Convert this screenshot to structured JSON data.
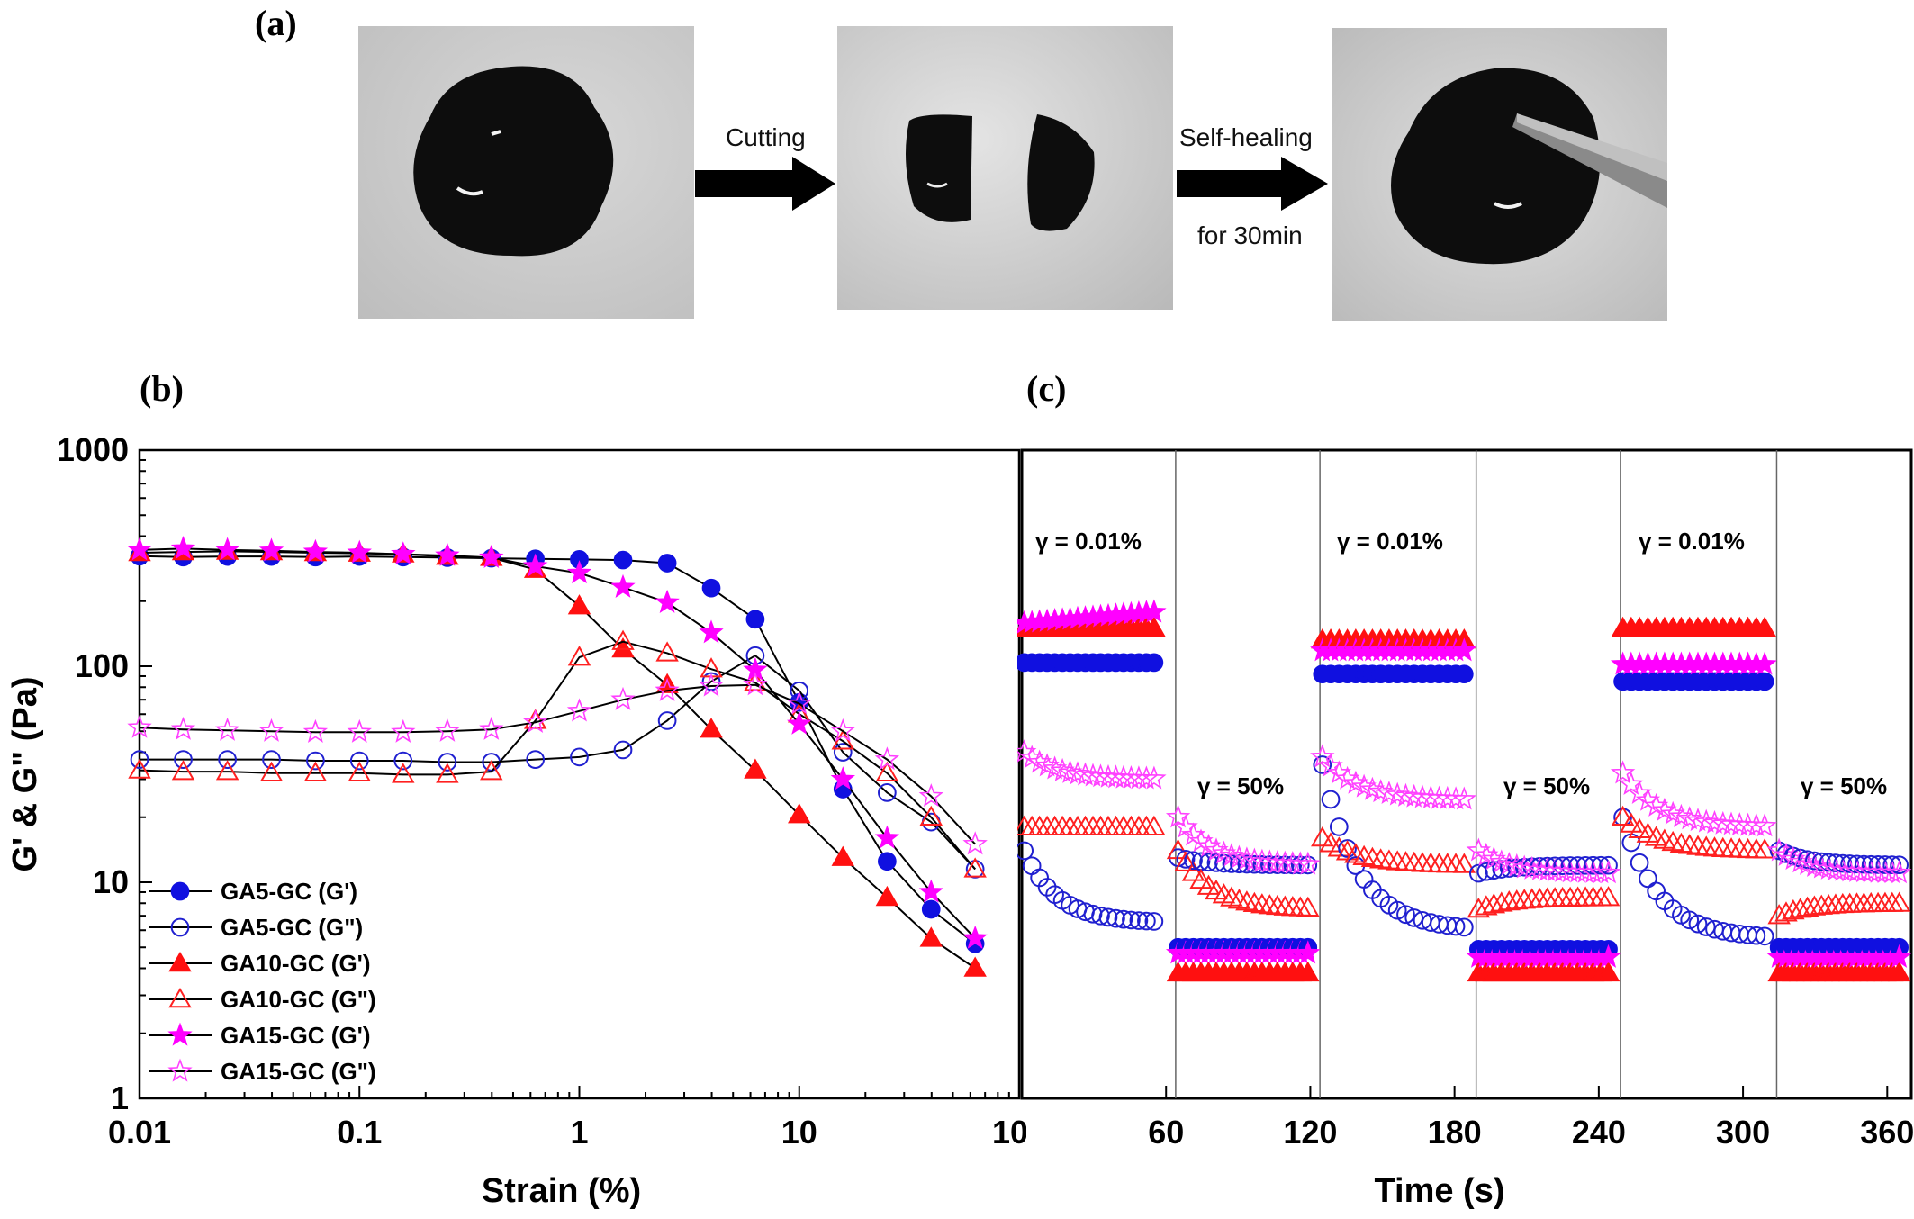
{
  "panel_labels": {
    "a": "(a)",
    "b": "(b)",
    "c": "(c)"
  },
  "photos": {
    "step1_label": "Cutting",
    "step2_label": "Self-healing",
    "step2_sublabel": "for 30min"
  },
  "colors": {
    "blue": "#1010e0",
    "red": "#ff1010",
    "magenta": "#ff00ff",
    "open_blue": "#2020d0",
    "open_red": "#ff2020",
    "open_magenta": "#ff40ff"
  },
  "chart_data": [
    {
      "type": "scatter",
      "panel": "b",
      "xlabel": "Strain (%)",
      "ylabel": "G' & G\" (Pa)",
      "xscale": "log",
      "yscale": "log",
      "xlim": [
        0.01,
        100
      ],
      "ylim": [
        1,
        1000
      ],
      "xticks": [
        "0.01",
        "0.1",
        "1",
        "10",
        "100"
      ],
      "yticks": [
        "1",
        "10",
        "100",
        "1000"
      ],
      "legend_position": "bottom-left",
      "series": [
        {
          "name": "GA5-GC (G')",
          "marker": "circle",
          "filled": true,
          "color": "#1010e0",
          "x": [
            0.01,
            0.0158,
            0.0251,
            0.0398,
            0.0631,
            0.1,
            0.158,
            0.251,
            0.398,
            0.631,
            1,
            1.58,
            2.51,
            3.98,
            6.31,
            10,
            15.8,
            25.1,
            39.8,
            63.1
          ],
          "y": [
            323,
            320,
            322,
            322,
            320,
            322,
            320,
            318,
            316,
            314,
            312,
            310,
            300,
            230,
            165,
            68,
            27,
            12.5,
            7.5,
            5.2
          ]
        },
        {
          "name": "GA5-GC (G\")",
          "marker": "circle",
          "filled": false,
          "color": "#2020d0",
          "x": [
            0.01,
            0.0158,
            0.0251,
            0.0398,
            0.0631,
            0.1,
            0.158,
            0.251,
            0.398,
            0.631,
            1,
            1.58,
            2.51,
            3.98,
            6.31,
            10,
            15.8,
            25.1,
            39.8,
            63.1
          ],
          "y": [
            37,
            37,
            37,
            37,
            36.5,
            36.5,
            36.5,
            36,
            36,
            37,
            38,
            41,
            56,
            85,
            112,
            77,
            40,
            26,
            19,
            11.5
          ]
        },
        {
          "name": "GA10-GC (G')",
          "marker": "triangle",
          "filled": true,
          "color": "#ff1010",
          "x": [
            0.01,
            0.0158,
            0.0251,
            0.0398,
            0.0631,
            0.1,
            0.158,
            0.251,
            0.398,
            0.631,
            1,
            1.58,
            2.51,
            3.98,
            6.31,
            10,
            15.8,
            25.1,
            39.8,
            63.1
          ],
          "y": [
            335,
            338,
            340,
            338,
            335,
            333,
            330,
            322,
            318,
            280,
            190,
            120,
            82,
            51,
            33,
            20.5,
            13,
            8.5,
            5.5,
            4
          ]
        },
        {
          "name": "GA10-GC (G\")",
          "marker": "triangle",
          "filled": false,
          "color": "#ff2020",
          "x": [
            0.01,
            0.0158,
            0.0251,
            0.0398,
            0.0631,
            0.1,
            0.158,
            0.251,
            0.398,
            0.631,
            1,
            1.58,
            2.51,
            3.98,
            6.31,
            10,
            15.8,
            25.1,
            39.8,
            63.1
          ],
          "y": [
            33,
            32.5,
            32.5,
            32,
            32,
            32,
            31.5,
            31.5,
            32.5,
            56,
            110,
            130,
            115,
            97,
            84,
            60,
            45,
            32,
            20,
            11.5
          ]
        },
        {
          "name": "GA15-GC (G')",
          "marker": "star",
          "filled": true,
          "color": "#ff00ff",
          "x": [
            0.01,
            0.0158,
            0.0251,
            0.0398,
            0.0631,
            0.1,
            0.158,
            0.251,
            0.398,
            0.631,
            1,
            1.58,
            2.51,
            3.98,
            6.31,
            10,
            15.8,
            25.1,
            39.8,
            63.1
          ],
          "y": [
            345,
            350,
            345,
            342,
            338,
            335,
            330,
            325,
            318,
            290,
            270,
            232,
            197,
            143,
            96,
            54,
            30,
            16,
            9,
            5.5
          ]
        },
        {
          "name": "GA15-GC (G\")",
          "marker": "star",
          "filled": false,
          "color": "#ff40ff",
          "x": [
            0.01,
            0.0158,
            0.0251,
            0.0398,
            0.0631,
            0.1,
            0.158,
            0.251,
            0.398,
            0.631,
            1,
            1.58,
            2.51,
            3.98,
            6.31,
            10,
            15.8,
            25.1,
            39.8,
            63.1
          ],
          "y": [
            52,
            51,
            50.5,
            50,
            49.5,
            49.5,
            49.5,
            50,
            51,
            55,
            62,
            70,
            77,
            81,
            82,
            67,
            50,
            37,
            25,
            15
          ]
        }
      ]
    },
    {
      "type": "scatter",
      "panel": "c",
      "xlabel": "Time (s)",
      "yscale": "log",
      "ylim": [
        1,
        1000
      ],
      "xlim": [
        0,
        370
      ],
      "xticks": [
        "0",
        "60",
        "120",
        "180",
        "240",
        "300",
        "360"
      ],
      "dividers": [
        64,
        124,
        189,
        249,
        314
      ],
      "annotations": [
        "γ = 0.01%",
        "γ = 50%",
        "γ = 0.01%",
        "γ = 50%",
        "γ = 0.01%",
        "γ = 50%"
      ],
      "segments": [
        {
          "t": [
            0,
            60
          ],
          "blue_gp": 104,
          "blue_gpp": [
            14,
            6.5
          ],
          "red_gp": 150,
          "red_gpp": 18,
          "mag_gp": [
            158,
            178
          ],
          "mag_gpp": [
            40,
            30
          ]
        },
        {
          "t": [
            64,
            124
          ],
          "blue_gp": 5.0,
          "blue_gpp": [
            13,
            12
          ],
          "red_gp": 3.8,
          "red_gpp": [
            14,
            7.5
          ],
          "mag_gp": 4.7,
          "mag_gpp": [
            20,
            12
          ]
        },
        {
          "t": [
            124,
            189
          ],
          "blue_gp": 92,
          "blue_gpp": [
            35,
            6
          ],
          "red_gp": 132,
          "red_gpp": [
            16,
            12
          ],
          "mag_gp": 118,
          "mag_gpp": [
            38,
            24
          ]
        },
        {
          "t": [
            189,
            249
          ],
          "blue_gp": 4.9,
          "blue_gpp": [
            11,
            12
          ],
          "red_gp": 3.8,
          "red_gpp": [
            7.5,
            8.5
          ],
          "mag_gp": 4.5,
          "mag_gpp": [
            14,
            11
          ]
        },
        {
          "t": [
            249,
            314
          ],
          "blue_gp": 85,
          "blue_gpp": [
            20,
            5.5
          ],
          "red_gp": 150,
          "red_gpp": [
            20,
            14
          ],
          "mag_gp": 102,
          "mag_gpp": [
            32,
            18
          ]
        },
        {
          "t": [
            314,
            370
          ],
          "blue_gp": 5.0,
          "blue_gpp": [
            14,
            12
          ],
          "red_gp": 3.8,
          "red_gpp": [
            7,
            8
          ],
          "mag_gp": 4.5,
          "mag_gpp": [
            14,
            11
          ]
        }
      ]
    }
  ]
}
